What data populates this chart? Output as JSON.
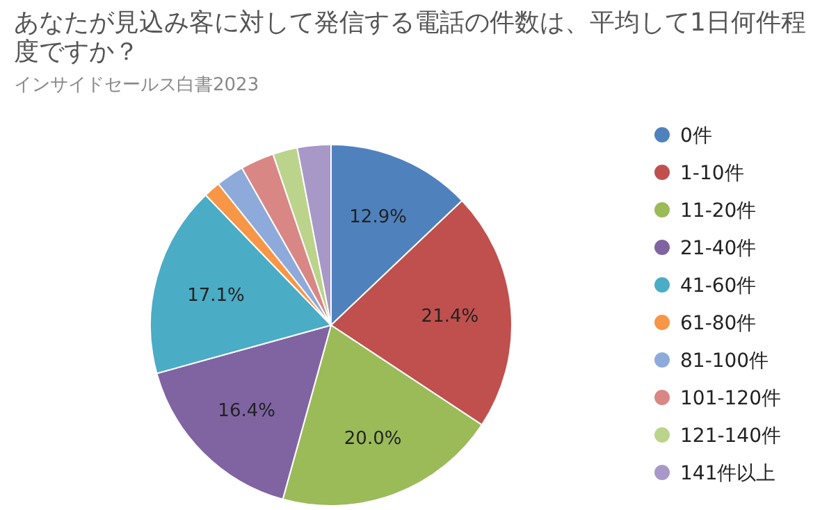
{
  "chart_data": {
    "type": "pie",
    "title": "あなたが見込み客に対して発信する電話の件数は、平均して1日何件程度ですか？",
    "subtitle": "インサイドセールス白書2023",
    "categories": [
      "0件",
      "1-10件",
      "11-20件",
      "21-40件",
      "41-60件",
      "61-80件",
      "81-100件",
      "101-120件",
      "121-140件",
      "141件以上"
    ],
    "values": [
      12.9,
      21.4,
      20.0,
      16.4,
      17.1,
      1.5,
      2.5,
      3.0,
      2.2,
      3.0
    ],
    "value_labels": [
      "12.9%",
      "21.4%",
      "20.0%",
      "16.4%",
      "17.1%",
      null,
      null,
      null,
      null,
      null
    ],
    "colors": [
      "#4f81bd",
      "#c0504d",
      "#9bbb59",
      "#8064a2",
      "#4bacc6",
      "#f79646",
      "#8eaadb",
      "#d98785",
      "#bcd38b",
      "#a898c8"
    ],
    "legend": "right"
  }
}
